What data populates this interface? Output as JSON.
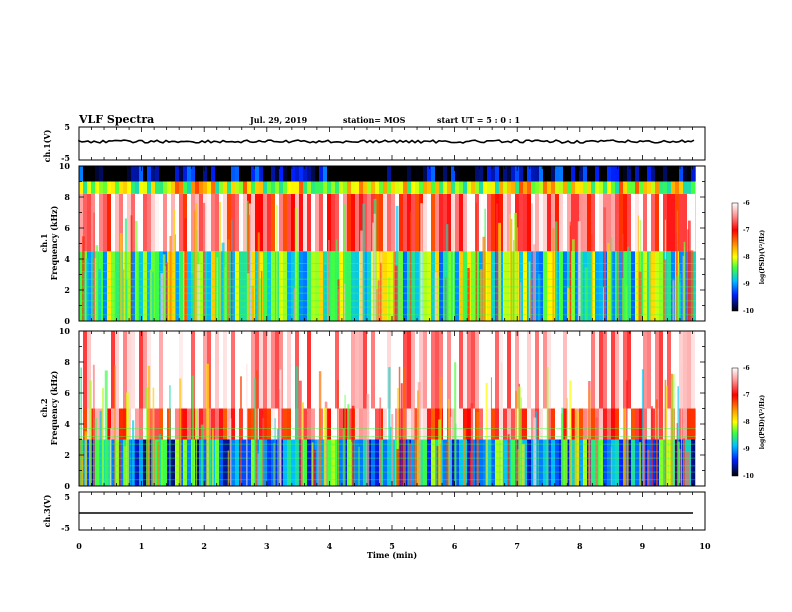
{
  "header": {
    "title": "VLF Spectra",
    "date": "Jul. 29, 2019",
    "station": "station= MOS",
    "start": "start  UT =  5 : 0  : 1"
  },
  "panels": {
    "ch1_volt": {
      "ylabel": "ch.1(V)",
      "ticks": [
        "5",
        "-5"
      ]
    },
    "ch1_spec": {
      "ylabel_1": "ch.1",
      "ylabel_2": "Frequency (kHz)",
      "ticks": [
        "10",
        "8",
        "6",
        "4",
        "2",
        "0"
      ]
    },
    "ch2_spec": {
      "ylabel_1": "ch.2",
      "ylabel_2": "Frequency (kHz)",
      "ticks": [
        "10",
        "8",
        "6",
        "4",
        "2",
        "0"
      ]
    },
    "ch3_volt": {
      "ylabel": "ch.3(V)",
      "ticks": [
        "5",
        "-5"
      ]
    }
  },
  "xaxis": {
    "label": "Time (min)",
    "ticks": [
      "0",
      "1",
      "2",
      "3",
      "4",
      "5",
      "6",
      "7",
      "8",
      "9",
      "10"
    ]
  },
  "colorbar": {
    "label": "log(PSD)(V²/Hz)",
    "ticks": [
      "-6",
      "-7",
      "-8",
      "-9",
      "-10"
    ]
  },
  "chart_data": [
    {
      "type": "line",
      "name": "ch.1(V)",
      "ylabel": "ch.1(V)",
      "xlim": [
        0,
        10
      ],
      "ylim": [
        -5,
        5
      ],
      "x": [
        0,
        9.85
      ],
      "y": [
        0,
        0
      ]
    },
    {
      "type": "heatmap",
      "name": "ch.1",
      "ylabel": "Frequency (kHz)",
      "xlim": [
        0,
        10
      ],
      "ylim": [
        0,
        10
      ],
      "data_end_x": 9.85,
      "z_range": [
        -10,
        -6
      ],
      "freq_bands_khz": [
        {
          "from": 0,
          "to": 4.5,
          "dominant_log_psd": -8.5
        },
        {
          "from": 4.5,
          "to": 8.2,
          "dominant_log_psd": -6.5
        },
        {
          "from": 8.2,
          "to": 9.0,
          "dominant_log_psd": -8.0
        },
        {
          "from": 9.0,
          "to": 10,
          "dominant_log_psd": -10
        }
      ]
    },
    {
      "type": "heatmap",
      "name": "ch.2",
      "ylabel": "Frequency (kHz)",
      "xlim": [
        0,
        10
      ],
      "ylim": [
        0,
        10
      ],
      "data_end_x": 9.85,
      "z_range": [
        -10,
        -6
      ],
      "freq_bands_khz": [
        {
          "from": 0,
          "to": 3.0,
          "dominant_log_psd": -9.0
        },
        {
          "from": 3.0,
          "to": 5.0,
          "dominant_log_psd": -6.5
        },
        {
          "from": 5.0,
          "to": 10,
          "dominant_log_psd": -6.0
        }
      ]
    },
    {
      "type": "line",
      "name": "ch.3(V)",
      "ylabel": "ch.3(V)",
      "xlim": [
        0,
        10
      ],
      "ylim": [
        -5,
        5
      ],
      "x": [
        0,
        9.85
      ],
      "y": [
        0,
        0
      ]
    }
  ],
  "colors": {
    "axis": "#000000",
    "noise_high": "#ff2020",
    "mid": "#40ff40",
    "low": "#2040ff"
  }
}
